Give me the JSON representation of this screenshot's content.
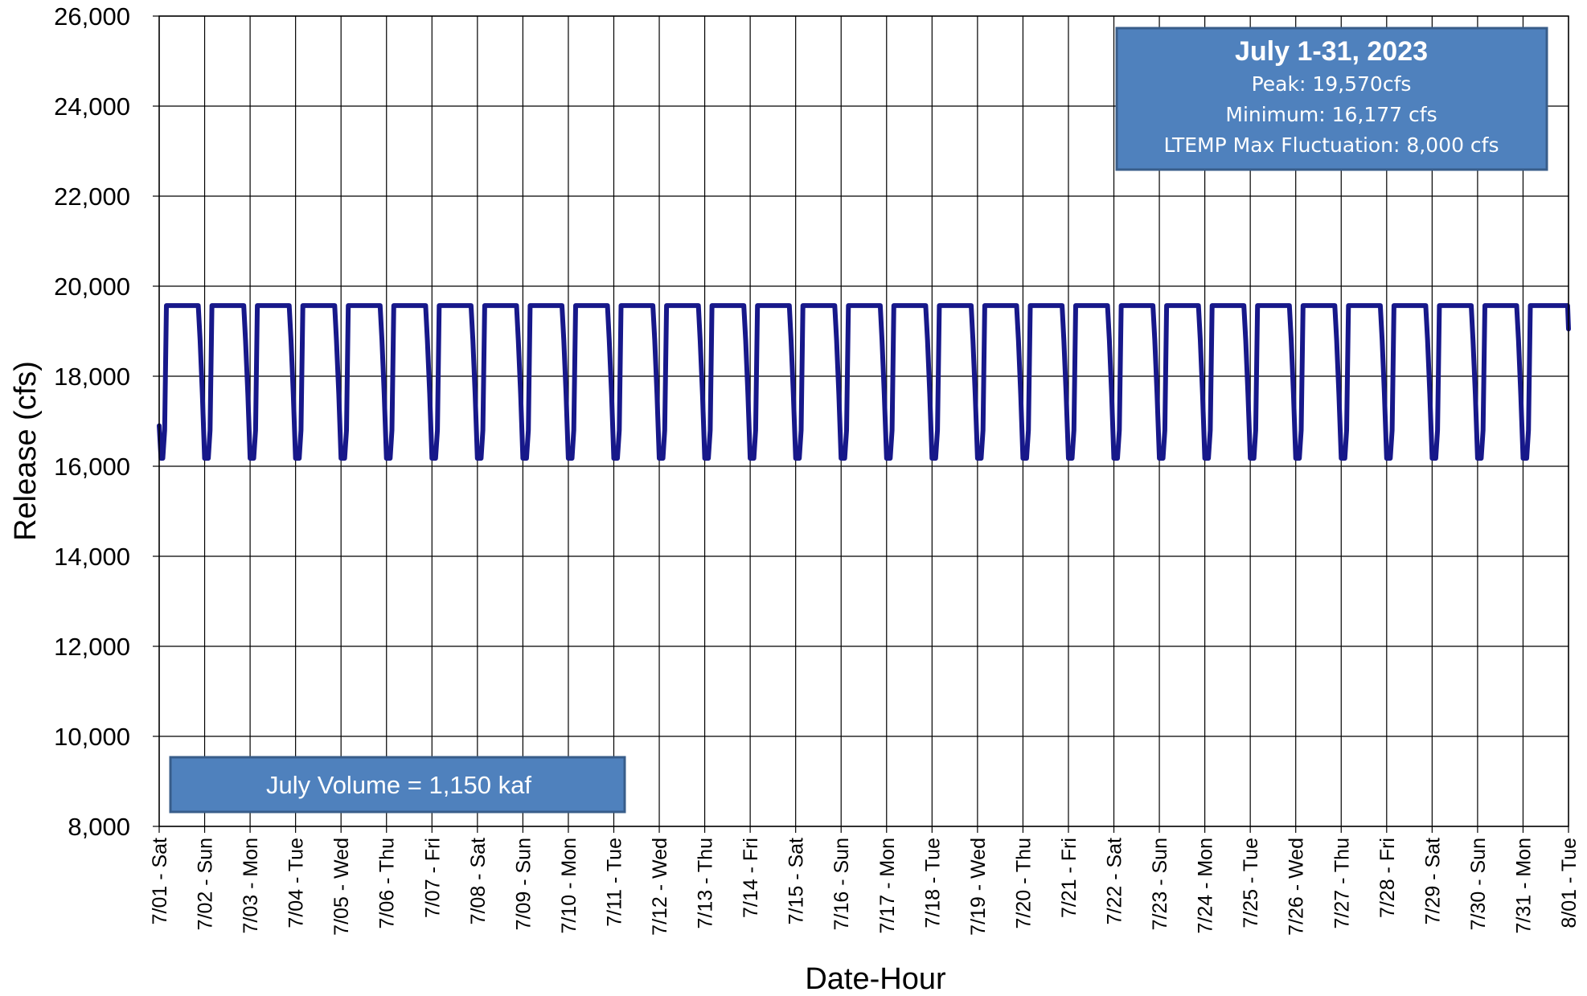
{
  "chart_data": {
    "type": "line",
    "xlabel": "Date-Hour",
    "ylabel": "Release  (cfs)",
    "ylim": [
      8000,
      26000
    ],
    "yticks": [
      8000,
      10000,
      12000,
      14000,
      16000,
      18000,
      20000,
      22000,
      24000,
      26000
    ],
    "ytick_labels": [
      "8,000",
      "10,000",
      "12,000",
      "14,000",
      "16,000",
      "18,000",
      "20,000",
      "22,000",
      "24,000",
      "26,000"
    ],
    "xtick_labels": [
      "7/01 - Sat",
      "7/02 - Sun",
      "7/03 - Mon",
      "7/04 - Tue",
      "7/05 - Wed",
      "7/06 - Thu",
      "7/07 - Fri",
      "7/08 - Sat",
      "7/09 - Sun",
      "7/10 - Mon",
      "7/11 - Tue",
      "7/12 - Wed",
      "7/13 - Thu",
      "7/14 - Fri",
      "7/15 - Sat",
      "7/16 - Sun",
      "7/17 - Mon",
      "7/18 - Tue",
      "7/19 - Wed",
      "7/20 - Thu",
      "7/21 - Fri",
      "7/22 - Sat",
      "7/23 - Sun",
      "7/24 - Mon",
      "7/25 - Tue",
      "7/26 - Wed",
      "7/27 - Thu",
      "7/28 - Fri",
      "7/29 - Sat",
      "7/30 - Sun",
      "7/31 - Mon",
      "8/01 - Tue"
    ],
    "grid": true,
    "line_color": "#17188a",
    "series": [
      {
        "x_unit": "days from 7/01 00:00",
        "daily_profile_x": [
          0.0,
          0.04,
          0.08,
          0.12,
          0.16,
          0.26,
          0.4,
          0.72,
          0.86,
          0.9,
          0.95,
          1.0
        ],
        "daily_profile_y": [
          16900,
          16177,
          16177,
          16800,
          19570,
          19570,
          19570,
          19570,
          19570,
          18800,
          17600,
          16177
        ],
        "days": 31,
        "end_point": [
          31.0,
          19050
        ]
      }
    ],
    "peak": 19570,
    "minimum": 16177
  },
  "info_box": {
    "title": "July 1-31, 2023",
    "peak_line": "Peak: 19,570cfs",
    "min_line": "Minimum: 16,177 cfs",
    "ltemp_line": "LTEMP Max Fluctuation: 8,000 cfs",
    "fill_color": "#4f81bd",
    "border_color": "#385d8a"
  },
  "volume_box": {
    "text": "July Volume = 1,150 kaf",
    "fill_color": "#4f81bd",
    "border_color": "#385d8a"
  }
}
